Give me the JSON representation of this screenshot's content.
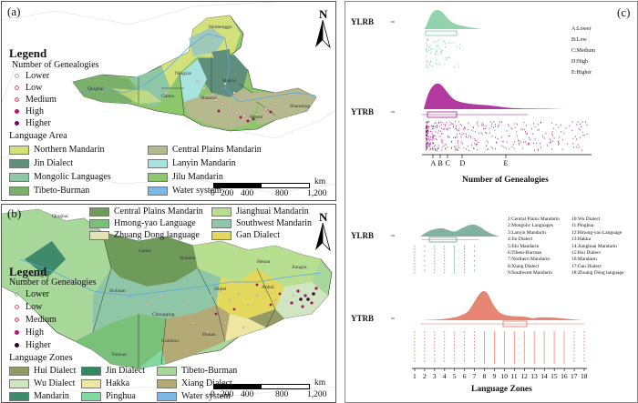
{
  "panel_a": {
    "label": "(a)",
    "north": "N",
    "legend_title": "Legend",
    "genealogy_title": "Number of Genealogies",
    "genealogy_levels": [
      "Lower",
      "Low",
      "Medium",
      "High",
      "Higher"
    ],
    "language_area_title": "Language Area",
    "language_areas": [
      {
        "name": "Northern Mandarin",
        "color": "#d4e17a"
      },
      {
        "name": "Central Plains Mandarin",
        "color": "#b5b98d"
      },
      {
        "name": "Jin Dialect",
        "color": "#5f8f7c"
      },
      {
        "name": "Lanyin Mandarin",
        "color": "#a7e3df"
      },
      {
        "name": "Mongolic Languages",
        "color": "#8ec7a5"
      },
      {
        "name": "Jilu Mandarin",
        "color": "#8cc86b"
      },
      {
        "name": "Tibeto-Burman",
        "color": "#7ab06a"
      },
      {
        "name": "Water system",
        "color": "#7ab9e6"
      }
    ],
    "scale": {
      "ticks": [
        "0",
        "200",
        "400",
        "800",
        "1,200"
      ],
      "unit": "km"
    },
    "place_labels": [
      "Neimenggu",
      "Qinghai",
      "Ningxia",
      "Gansu",
      "Shaanxi",
      "Shanxi",
      "Henan",
      "Shandong"
    ]
  },
  "panel_b": {
    "label": "(b)",
    "north": "N",
    "legend_title": "Legend",
    "genealogy_title": "Number of Genealogies",
    "genealogy_levels": [
      "Lower",
      "Low",
      "Medium",
      "High",
      "Higher"
    ],
    "top_legend": [
      {
        "name": "Central Plains Mandarin",
        "color": "#6e9a5a"
      },
      {
        "name": "Jianghuai Mandarin",
        "color": "#b7df8f"
      },
      {
        "name": "Hmong-yao Language",
        "color": "#79c079"
      },
      {
        "name": "Southwest Mandarin",
        "color": "#8fc6a8"
      },
      {
        "name": "Zhuang Dong language",
        "color": "#e4e2b7"
      },
      {
        "name": "Gan Dialect",
        "color": "#e2d85c"
      }
    ],
    "language_zones_title": "Language Zones",
    "language_zones": [
      {
        "name": "Hui Dialect",
        "color": "#949a63"
      },
      {
        "name": "Jin Dialect",
        "color": "#2e8a5c"
      },
      {
        "name": "Tibeto-Burman",
        "color": "#a8d79a"
      },
      {
        "name": "Wu Dialect",
        "color": "#cfe6c1"
      },
      {
        "name": "Hakka",
        "color": "#efe6a0"
      },
      {
        "name": "Xiang Dialect",
        "color": "#b4aa76"
      },
      {
        "name": "Mandarin",
        "color": "#3f8a6a"
      },
      {
        "name": "Pinghua",
        "color": "#7fd9a0"
      },
      {
        "name": "Water system",
        "color": "#7ab9e6"
      }
    ],
    "scale": {
      "ticks": [
        "0",
        "200",
        "400",
        "800",
        "1,200"
      ],
      "unit": "km"
    },
    "place_labels": [
      "Qinghai",
      "Xizang",
      "Sichuan",
      "Chongqing",
      "Yunnan",
      "Guizhou",
      "Hunan",
      "Hubei",
      "Anhui",
      "Jiangsu",
      "Henan",
      "Shaanxi",
      "Gansu"
    ]
  },
  "panel_c": {
    "label": "(c)",
    "top": {
      "rows": [
        "YLRB",
        "YTRB"
      ],
      "xlabel": "Number of Genealogies",
      "tick_letters": [
        "A",
        "B",
        "C",
        "D",
        "E"
      ],
      "level_key": [
        "A:Lower",
        "B:Low",
        "C:Medium",
        "D:High",
        "E:Higher"
      ],
      "colors": {
        "YLRB": "#7ccb9f",
        "YTRB": "#a3168f"
      }
    },
    "bottom": {
      "rows": [
        "YLRB",
        "YTRB"
      ],
      "xlabel": "Language Zones",
      "ticks": [
        "1",
        "2",
        "3",
        "4",
        "5",
        "6",
        "7",
        "8",
        "9",
        "10",
        "11",
        "12",
        "13",
        "14",
        "15",
        "16",
        "17",
        "18"
      ],
      "zones_left": [
        "1:Central Plains Mandarin",
        "2:Mongolic Languages",
        "3:Lanyin Mandarin",
        "4:Jin Dialect",
        "5:Jilu Mandarin",
        "6:Tibeto-Burman",
        "7:Northern Mandarin",
        "8:Xiang Dialect",
        "9:Southwest Mandarin"
      ],
      "zones_right": [
        "10:Wu Dialect",
        "11:Pinghua",
        "12:Hmong-yao Language",
        "13:Hakka",
        "14:Jianghuai Mandarin",
        "15:Hui Dialect",
        "16:Mandarin",
        "17:Gan Dialect",
        "18:Zhuang Dong language"
      ],
      "colors": {
        "YLRB": "#6aa392",
        "YTRB": "#e2705a"
      }
    }
  }
}
